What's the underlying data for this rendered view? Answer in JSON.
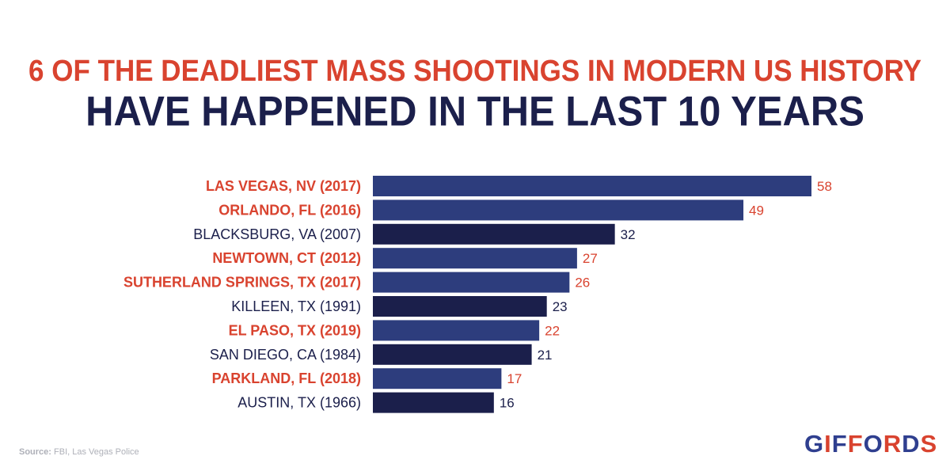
{
  "headline": {
    "line1": "6 OF THE DEADLIEST MASS SHOOTINGS IN MODERN US HISTORY",
    "line2": "HAVE HAPPENED IN THE LAST 10 YEARS"
  },
  "source": {
    "prefix": "Source:",
    "text": "FBI, Las Vegas Police"
  },
  "logo": {
    "text": "GIFFORDS"
  },
  "colors": {
    "recent_bar": "#2d3d7d",
    "older_bar": "#1b1f4b",
    "recent_label": "#d9432f",
    "older_label": "#1b1f4b"
  },
  "chart_data": {
    "type": "bar",
    "orientation": "horizontal",
    "categories": [
      "LAS VEGAS, NV (2017)",
      "ORLANDO, FL (2016)",
      "BLACKSBURG, VA (2007)",
      "NEWTOWN, CT (2012)",
      "SUTHERLAND SPRINGS, TX (2017)",
      "KILLEEN, TX (1991)",
      "EL PASO, TX (2019)",
      "SAN DIEGO, CA (1984)",
      "PARKLAND, FL (2018)",
      "AUSTIN, TX (1966)"
    ],
    "values": [
      58,
      49,
      32,
      27,
      26,
      23,
      22,
      21,
      17,
      16
    ],
    "highlighted": [
      true,
      true,
      false,
      true,
      true,
      false,
      true,
      false,
      true,
      false
    ],
    "xlim": [
      0,
      58
    ],
    "grid": false,
    "data_labels": true
  }
}
